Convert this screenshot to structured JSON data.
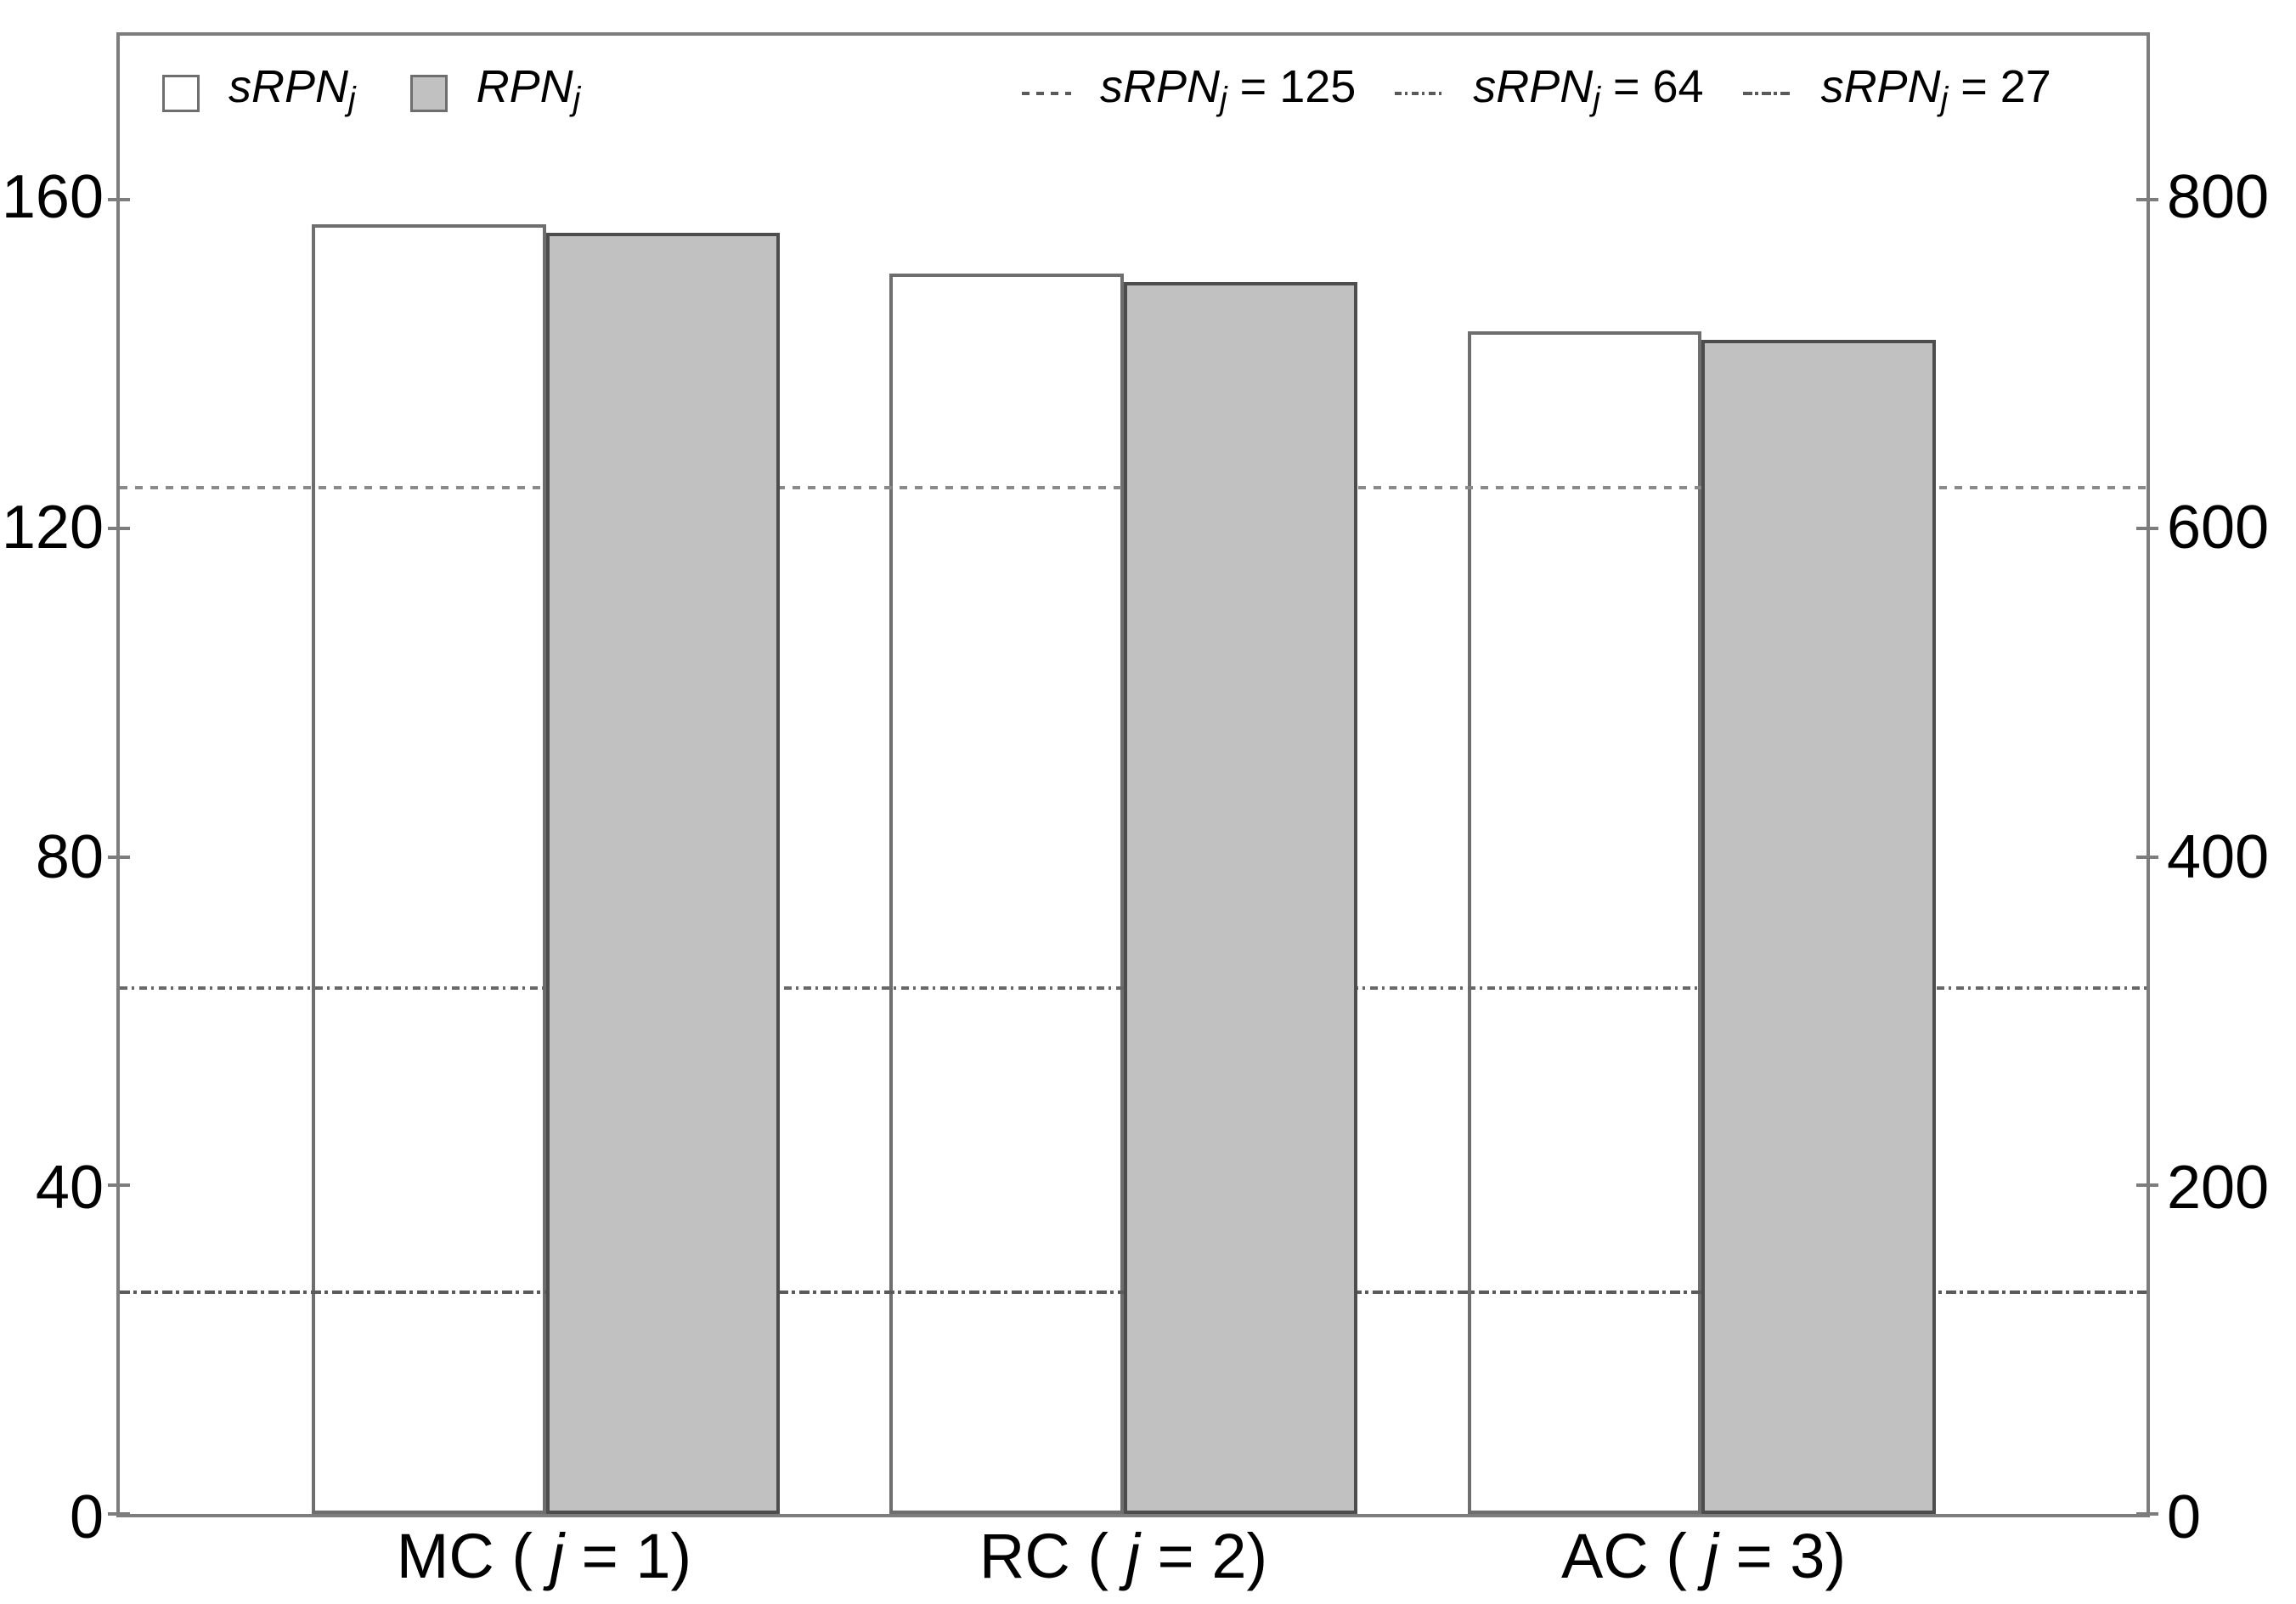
{
  "figure": {
    "description": "Grouped bar chart comparing sRPN and RPN per failure-cause category with three sRPN reference lines",
    "background": "#ffffff"
  },
  "colors": {
    "bar_white_fill": "#ffffff",
    "bar_white_border": "#6e6e6e",
    "bar_gray_fill": "#c1c1c1",
    "bar_gray_border": "#4d4d4d",
    "axis": "#7d7d7d",
    "ref_line_dashed": "#8a8a8a",
    "ref_line_dash_dot": "#686868",
    "ref_line_dash_dot_dot": "#5a5a5a",
    "text": "#000000"
  },
  "legend": {
    "series": [
      {
        "label_main": "sRPN",
        "label_sub": "j",
        "swatch": "white-square"
      },
      {
        "label_main": "RPN",
        "label_sub": "j",
        "swatch": "gray-square"
      }
    ],
    "ref_lines": [
      {
        "label_main": "sRPN",
        "label_sub": "j",
        "label_suffix": " = 125",
        "style": "dashed"
      },
      {
        "label_main": "sRPN",
        "label_sub": "j",
        "label_suffix": " = 64",
        "style": "dash-dot"
      },
      {
        "label_main": "sRPN",
        "label_sub": "j",
        "label_suffix": " = 27",
        "style": "dash-dot-dot"
      }
    ]
  },
  "chart_data": {
    "type": "bar",
    "categories": [
      "MC ( j = 1)",
      "RC ( j = 2)",
      "AC ( j = 3)"
    ],
    "series": [
      {
        "name": "sRPN_j",
        "axis": "left",
        "fill": "white",
        "values": [
          157,
          151,
          144
        ]
      },
      {
        "name": "RPN_j",
        "axis": "right",
        "fill": "gray",
        "values": [
          780,
          750,
          715
        ]
      }
    ],
    "reference_lines": [
      {
        "label": "sRPN_j = 125",
        "value": 125,
        "axis": "left",
        "style": "dashed"
      },
      {
        "label": "sRPN_j = 64",
        "value": 64,
        "axis": "left",
        "style": "dash-dot"
      },
      {
        "label": "sRPN_j = 27",
        "value": 27,
        "axis": "left",
        "style": "dash-dot-dot"
      }
    ],
    "left_axis": {
      "range": [
        0,
        180
      ],
      "ticks": [
        0,
        40,
        80,
        120,
        160
      ]
    },
    "right_axis": {
      "range": [
        0,
        900
      ],
      "ticks": [
        0,
        200,
        400,
        600,
        800
      ]
    },
    "grid": false,
    "legend_position": "top"
  }
}
